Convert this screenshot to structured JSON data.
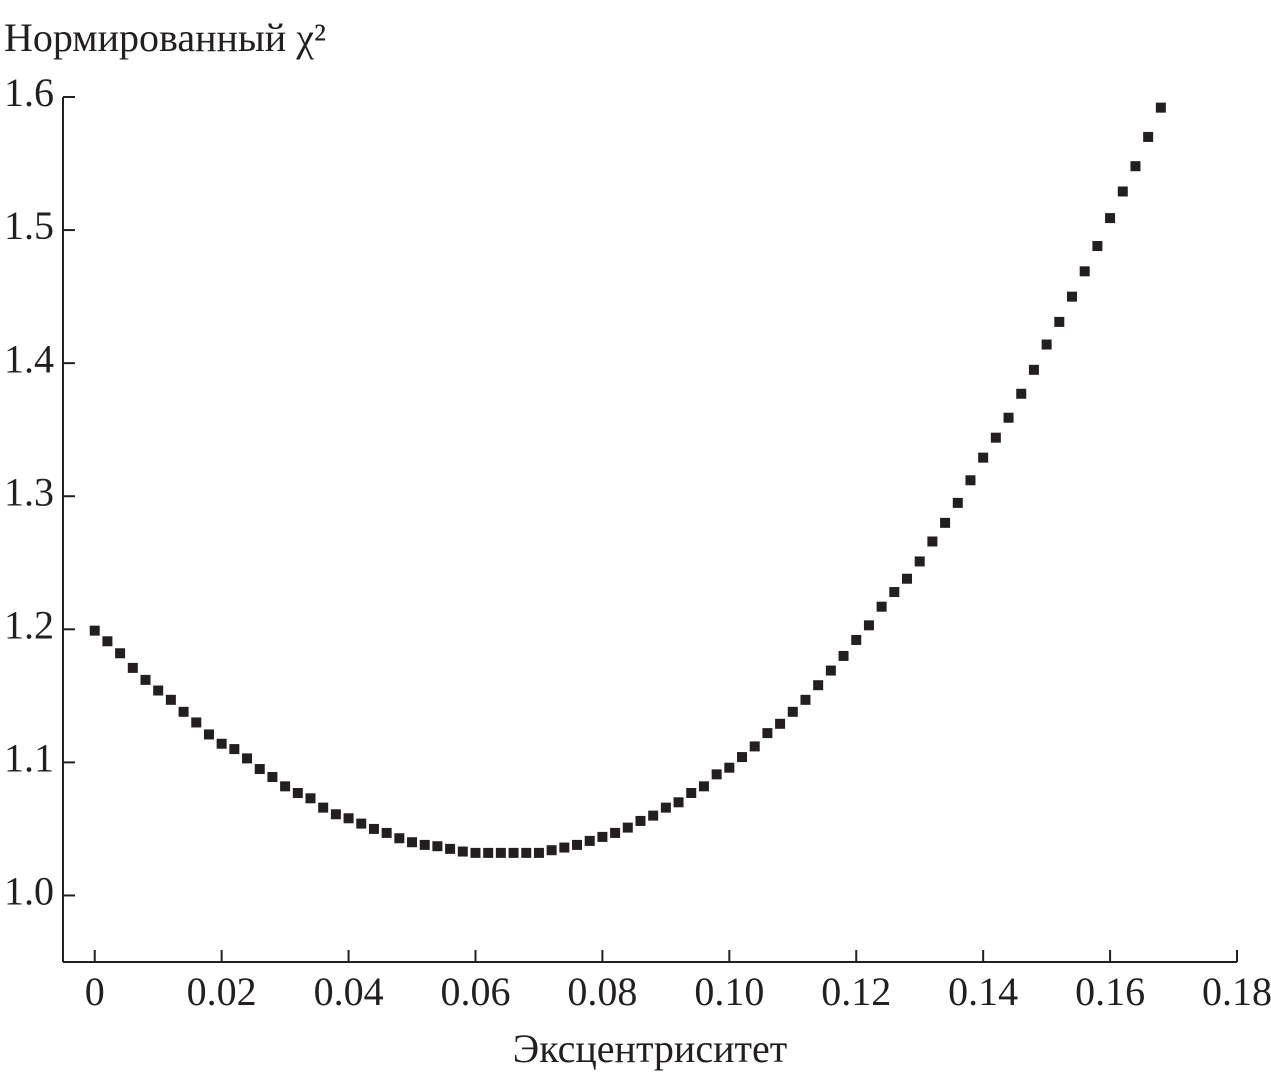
{
  "chart_data": {
    "type": "scatter",
    "y_label": "Нормированный χ²",
    "x_label": "Эксцентриситет",
    "color": "#231f20",
    "xlim": [
      -0.005,
      0.18
    ],
    "ylim": [
      0.95,
      1.6
    ],
    "xticks": [
      0,
      0.02,
      0.04,
      0.06,
      0.08,
      {
        "value": 0.1,
        "label": "0.10"
      },
      0.12,
      0.14,
      0.16,
      0.18
    ],
    "yticks": [
      {
        "value": 1,
        "label": "1.0"
      },
      1.1,
      1.2,
      1.3,
      1.4,
      1.5,
      1.6
    ],
    "x": [
      0,
      0.002,
      0.004,
      0.006,
      0.008,
      0.01,
      0.012,
      0.014,
      0.016,
      0.018,
      0.02,
      0.022,
      0.024,
      0.026,
      0.028,
      0.03,
      0.032,
      0.034,
      0.036,
      0.038,
      0.04,
      0.042,
      0.044,
      0.046,
      0.048,
      0.05,
      0.052,
      0.054,
      0.056,
      0.058,
      0.06,
      0.062,
      0.064,
      0.066,
      0.068,
      0.07,
      0.072,
      0.074,
      0.076,
      0.078,
      0.08,
      0.082,
      0.084,
      0.086,
      0.088,
      0.09,
      0.092,
      0.094,
      0.096,
      0.098,
      0.1,
      0.102,
      0.104,
      0.106,
      0.108,
      0.11,
      0.112,
      0.114,
      0.116,
      0.118,
      0.12,
      0.122,
      0.124,
      0.126,
      0.128,
      0.13,
      0.132,
      0.134,
      0.136,
      0.138,
      0.14,
      0.142,
      0.144,
      0.146,
      0.148,
      0.15,
      0.152,
      0.154,
      0.156,
      0.158,
      0.16,
      0.162,
      0.164,
      0.166,
      0.168
    ],
    "values": [
      1.199,
      1.191,
      1.182,
      1.171,
      1.162,
      1.154,
      1.147,
      1.138,
      1.13,
      1.121,
      1.114,
      1.11,
      1.103,
      1.095,
      1.089,
      1.082,
      1.077,
      1.073,
      1.066,
      1.061,
      1.058,
      1.054,
      1.05,
      1.047,
      1.043,
      1.04,
      1.038,
      1.037,
      1.035,
      1.033,
      1.032,
      1.032,
      1.032,
      1.032,
      1.032,
      1.032,
      1.034,
      1.036,
      1.038,
      1.041,
      1.044,
      1.047,
      1.051,
      1.056,
      1.06,
      1.066,
      1.07,
      1.077,
      1.082,
      1.091,
      1.096,
      1.104,
      1.112,
      1.122,
      1.129,
      1.138,
      1.147,
      1.158,
      1.169,
      1.18,
      1.192,
      1.203,
      1.217,
      1.228,
      1.238,
      1.251,
      1.266,
      1.28,
      1.295,
      1.312,
      1.329,
      1.344,
      1.359,
      1.377,
      1.395,
      1.414,
      1.431,
      1.45,
      1.469,
      1.488,
      1.509,
      1.529,
      1.548,
      1.57,
      1.592
    ]
  }
}
